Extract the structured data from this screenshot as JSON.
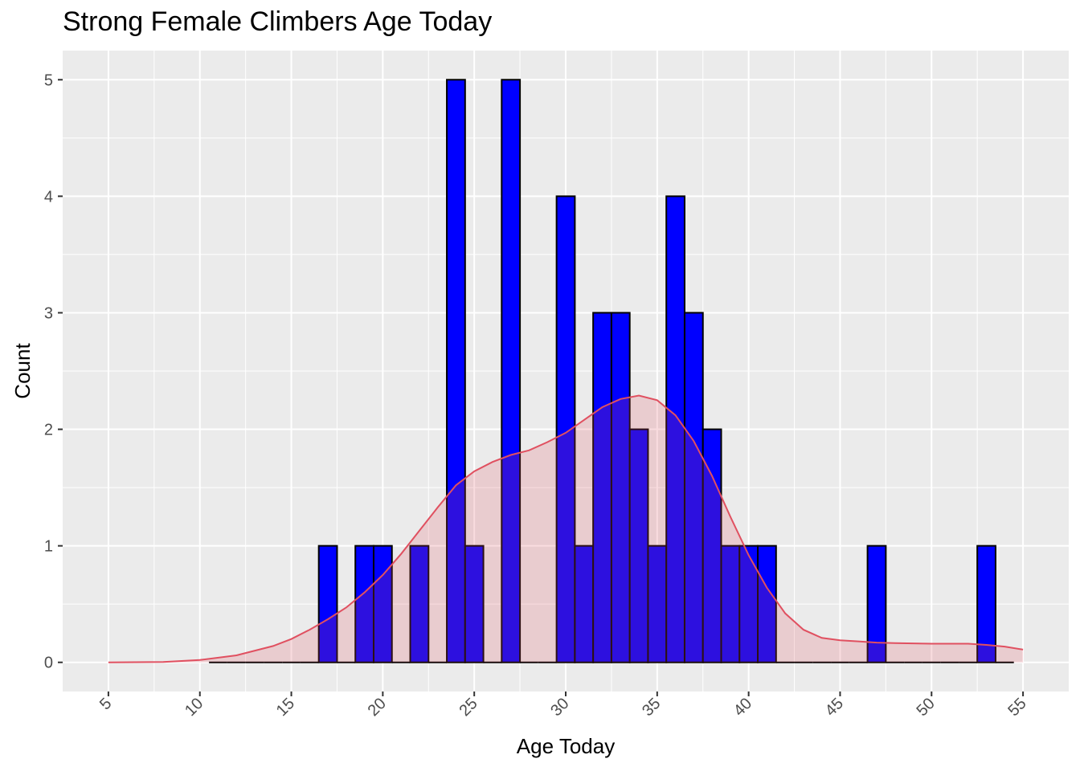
{
  "chart_data": {
    "type": "bar",
    "title": "Strong Female Climbers Age Today",
    "xlabel": "Age Today",
    "ylabel": "Count",
    "xlim": [
      2.5,
      57.5
    ],
    "ylim": [
      -0.25,
      5.25
    ],
    "x_ticks": [
      "5",
      "10",
      "15",
      "20",
      "25",
      "30",
      "35",
      "40",
      "45",
      "50",
      "55"
    ],
    "x_tick_values": [
      5,
      10,
      15,
      20,
      25,
      30,
      35,
      40,
      45,
      50,
      55
    ],
    "y_ticks": [
      "0",
      "1",
      "2",
      "3",
      "4",
      "5"
    ],
    "y_tick_values": [
      0,
      1,
      2,
      3,
      4,
      5
    ],
    "grid": true,
    "histogram": {
      "bin_width": 1,
      "bin_centers": [
        11,
        12,
        13,
        14,
        15,
        16,
        17,
        18,
        19,
        20,
        21,
        22,
        23,
        24,
        25,
        26,
        27,
        28,
        29,
        30,
        31,
        32,
        33,
        34,
        35,
        36,
        37,
        38,
        39,
        40,
        41,
        42,
        43,
        44,
        45,
        46,
        47,
        48,
        49,
        50,
        51,
        52,
        53,
        54
      ],
      "counts": [
        0,
        0,
        0,
        0,
        0,
        0,
        1,
        0,
        1,
        1,
        0,
        1,
        0,
        5,
        1,
        0,
        5,
        0,
        0,
        4,
        1,
        3,
        3,
        2,
        1,
        4,
        3,
        2,
        1,
        1,
        1,
        0,
        0,
        0,
        0,
        0,
        1,
        0,
        0,
        0,
        0,
        0,
        1,
        0
      ],
      "fill_color": "#0000ff",
      "border_color": "#000000"
    },
    "density": {
      "x": [
        5,
        8,
        10,
        12,
        14,
        15,
        16,
        17,
        18,
        19,
        20,
        21,
        22,
        23,
        24,
        25,
        26,
        27,
        28,
        29,
        30,
        31,
        32,
        33,
        34,
        35,
        36,
        37,
        38,
        39,
        40,
        41,
        42,
        43,
        44,
        45,
        46,
        47,
        48,
        50,
        52,
        53,
        54,
        55
      ],
      "y": [
        0,
        0.003,
        0.02,
        0.06,
        0.14,
        0.2,
        0.28,
        0.37,
        0.47,
        0.6,
        0.75,
        0.93,
        1.13,
        1.33,
        1.52,
        1.64,
        1.72,
        1.78,
        1.82,
        1.89,
        1.97,
        2.08,
        2.19,
        2.26,
        2.29,
        2.25,
        2.12,
        1.9,
        1.6,
        1.25,
        0.92,
        0.64,
        0.42,
        0.28,
        0.21,
        0.19,
        0.18,
        0.17,
        0.165,
        0.16,
        0.16,
        0.15,
        0.135,
        0.11
      ],
      "line_color": "#e05060",
      "fill_color": "#e05060"
    }
  }
}
